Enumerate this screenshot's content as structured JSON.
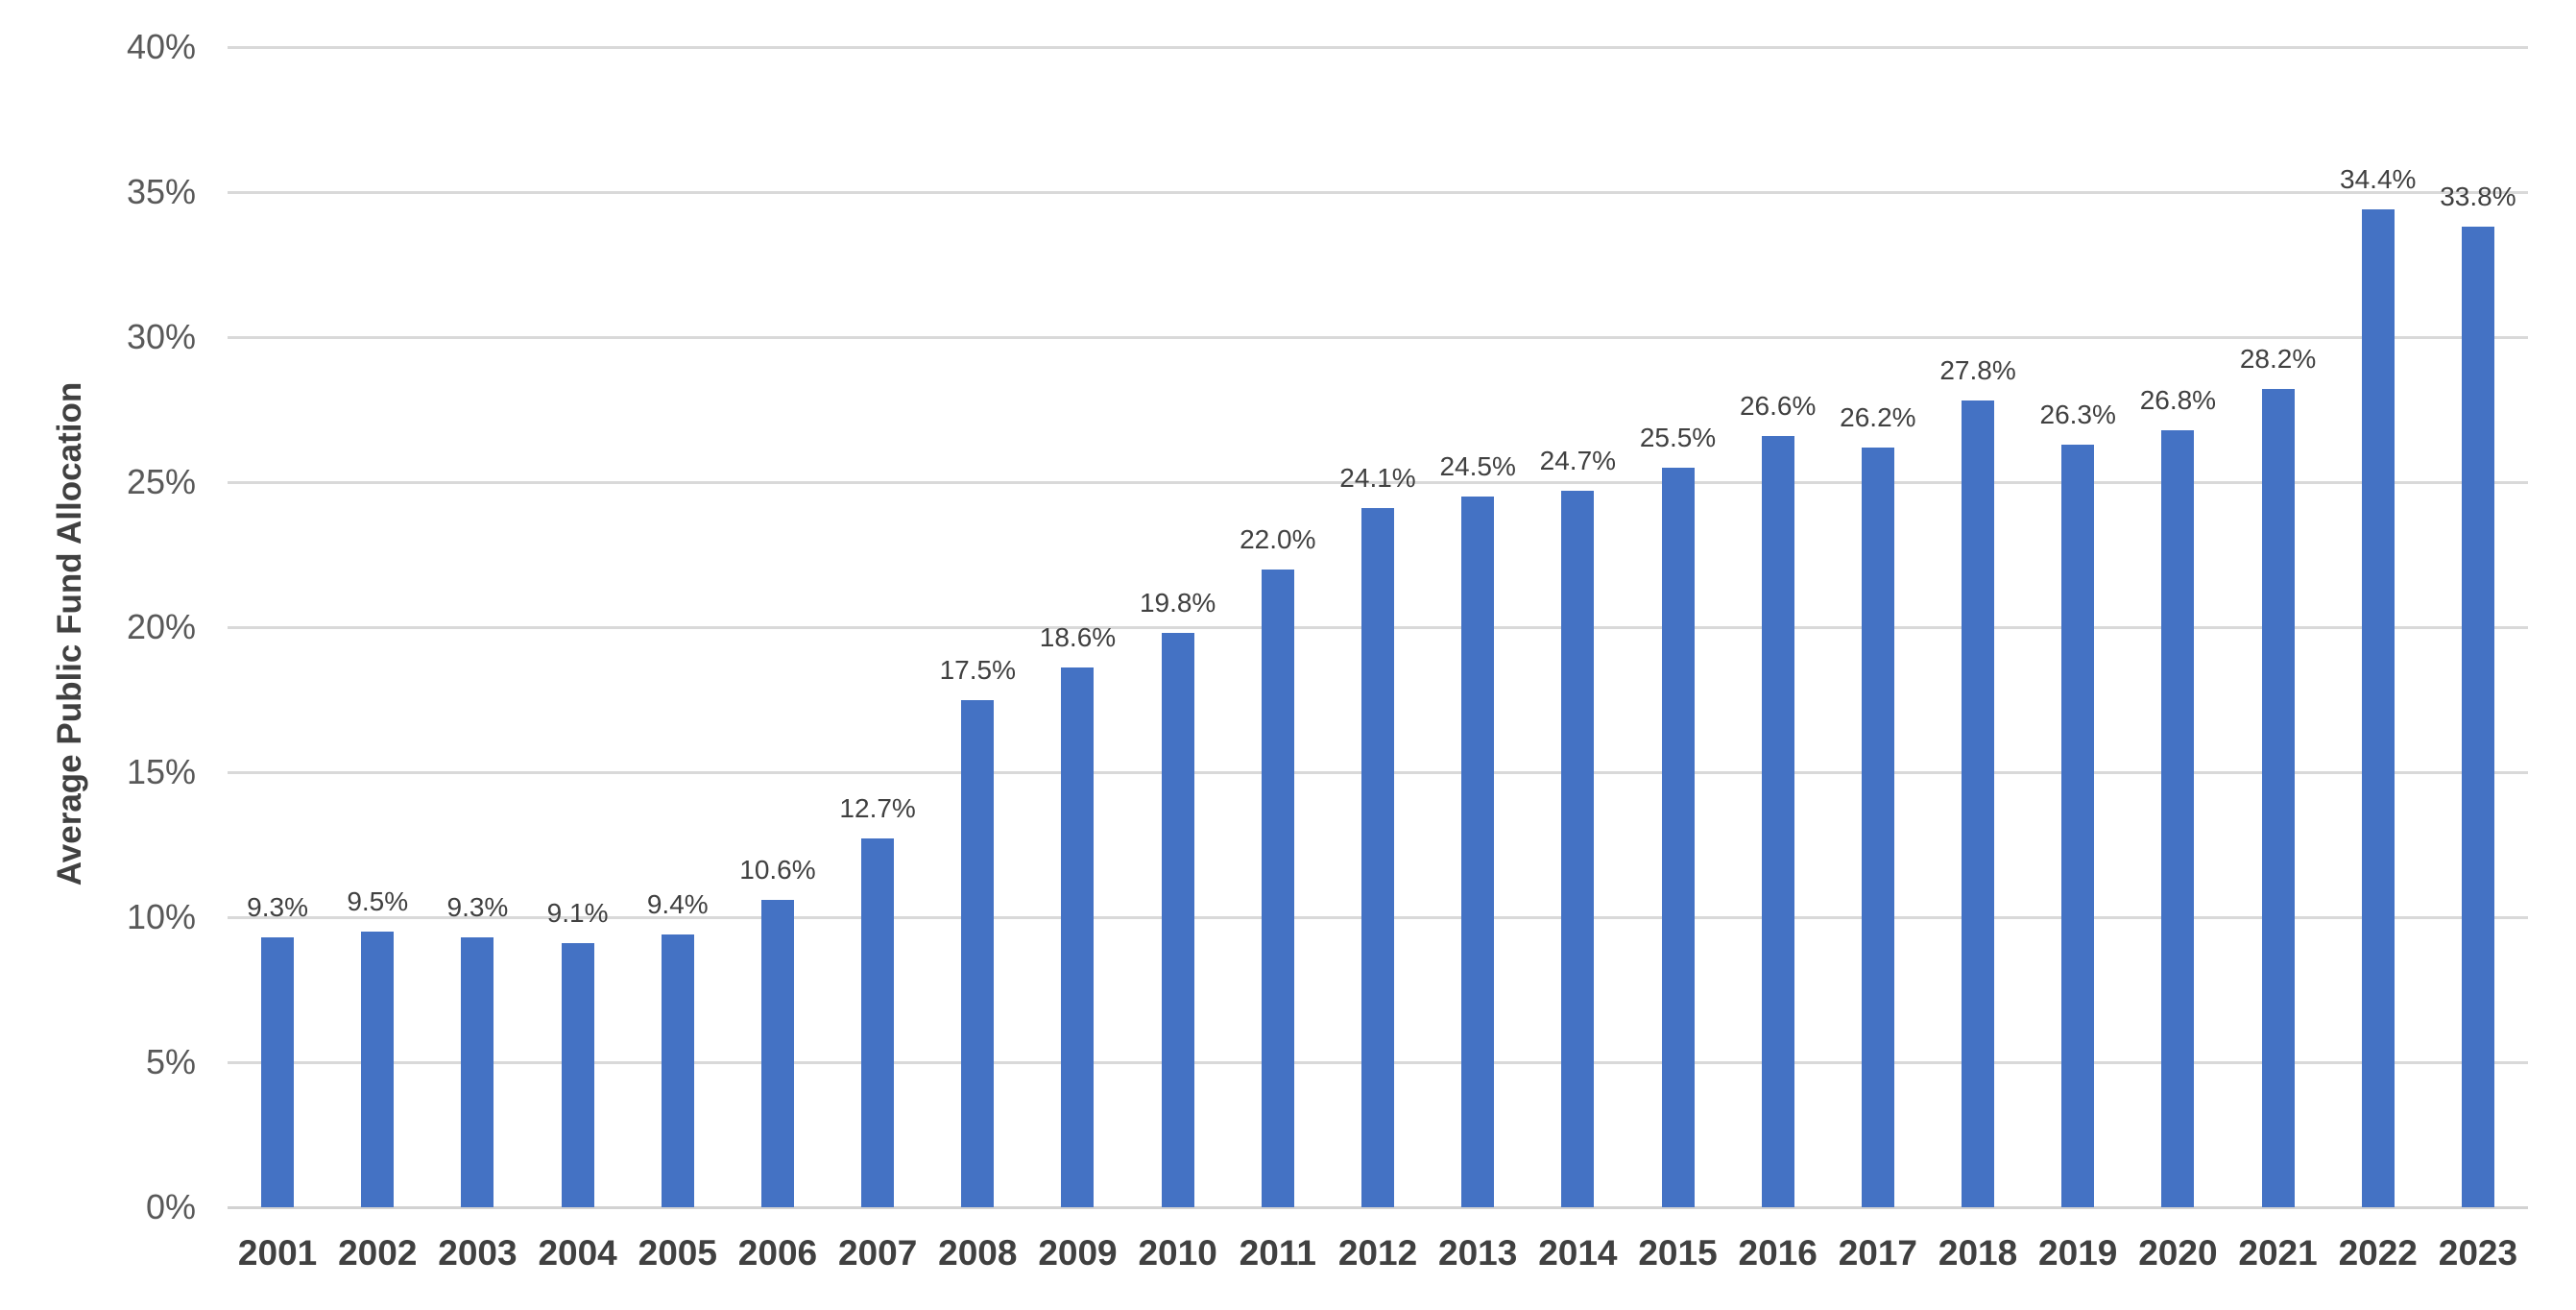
{
  "chart_data": {
    "type": "bar",
    "title": "",
    "xlabel": "",
    "ylabel": "Average Public Fund Allocation",
    "categories": [
      "2001",
      "2002",
      "2003",
      "2004",
      "2005",
      "2006",
      "2007",
      "2008",
      "2009",
      "2010",
      "2011",
      "2012",
      "2013",
      "2014",
      "2015",
      "2016",
      "2017",
      "2018",
      "2019",
      "2020",
      "2021",
      "2022",
      "2023"
    ],
    "values": [
      9.3,
      9.5,
      9.3,
      9.1,
      9.4,
      10.6,
      12.7,
      17.5,
      18.6,
      19.8,
      22.0,
      24.1,
      24.5,
      24.7,
      25.5,
      26.6,
      26.2,
      27.8,
      26.3,
      26.8,
      28.2,
      34.4,
      33.8
    ],
    "data_labels": [
      "9.3%",
      "9.5%",
      "9.3%",
      "9.1%",
      "9.4%",
      "10.6%",
      "12.7%",
      "17.5%",
      "18.6%",
      "19.8%",
      "22.0%",
      "24.1%",
      "24.5%",
      "24.7%",
      "25.5%",
      "26.6%",
      "26.2%",
      "27.8%",
      "26.3%",
      "26.8%",
      "28.2%",
      "34.4%",
      "33.8%"
    ],
    "ylim": [
      0,
      40
    ],
    "ytick_values": [
      0,
      5,
      10,
      15,
      20,
      25,
      30,
      35,
      40
    ],
    "ytick_labels": [
      "0%",
      "5%",
      "10%",
      "15%",
      "20%",
      "25%",
      "30%",
      "35%",
      "40%"
    ],
    "grid": true,
    "legend_position": "none",
    "colors": {
      "bar": "#4472C4",
      "gridline": "#D9D9D9",
      "axis_line": "#D2D2D2",
      "y_tick_text": "#595959",
      "x_tick_text": "#404040",
      "data_label_text": "#404040",
      "axis_title_text": "#404040"
    }
  }
}
